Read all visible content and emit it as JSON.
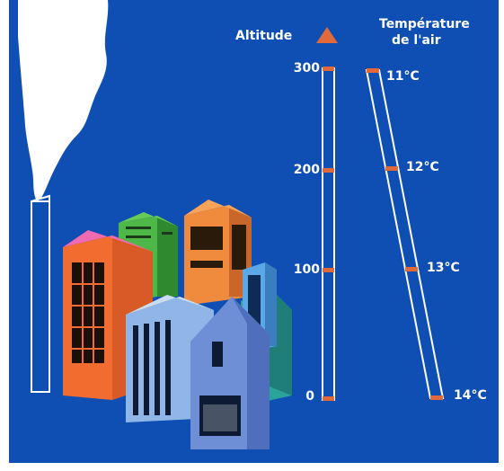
{
  "colors": {
    "background": "#0f4fb3",
    "marker": "#e06a3c",
    "scale_outline": "#ffffff"
  },
  "altitude_scale": {
    "title": "Altitude",
    "ticks": [
      "300",
      "200",
      "100",
      "0"
    ]
  },
  "temperature_scale": {
    "title_line1": "Température",
    "title_line2": "de l'air",
    "values": [
      "11°C",
      "12°C",
      "13°C",
      "14°C"
    ]
  },
  "illustration": {
    "chimney_smoke": "smoke-plume",
    "city": "city-buildings"
  }
}
